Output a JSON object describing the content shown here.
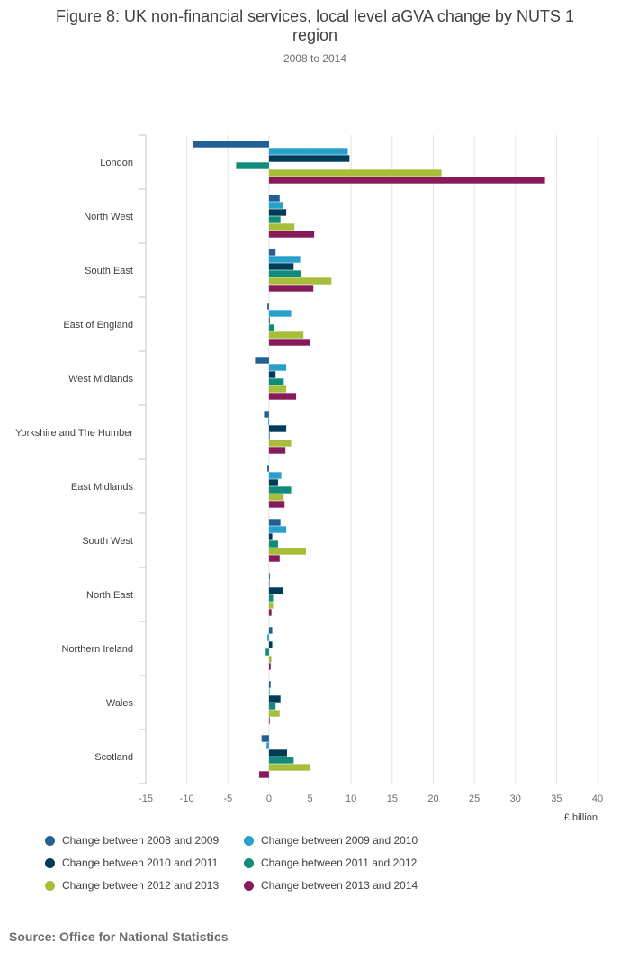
{
  "chart_data": {
    "type": "bar",
    "orientation": "horizontal",
    "title": "Figure 8: UK non-financial services, local level aGVA change by NUTS 1 region",
    "subtitle": "2008 to 2014",
    "xlabel": "£ billion",
    "xlim": [
      -15,
      40
    ],
    "xticks": [
      -15,
      -10,
      -5,
      0,
      5,
      10,
      15,
      20,
      25,
      30,
      35,
      40
    ],
    "grid": true,
    "legend_position": "bottom",
    "categories": [
      "London",
      "North West",
      "South East",
      "East of England",
      "West Midlands",
      "Yorkshire and The Humber",
      "East Midlands",
      "South West",
      "North East",
      "Northern Ireland",
      "Wales",
      "Scotland"
    ],
    "series": [
      {
        "name": "Change between 2008 and 2009",
        "color": "#206095",
        "values": [
          -9.2,
          1.3,
          0.8,
          -0.2,
          -1.7,
          -0.6,
          -0.2,
          1.4,
          0.1,
          0.4,
          0.2,
          -0.9
        ]
      },
      {
        "name": "Change between 2009 and 2010",
        "color": "#27a0cc",
        "values": [
          9.6,
          1.7,
          3.8,
          2.7,
          2.1,
          -0.1,
          1.5,
          2.1,
          0.0,
          -0.2,
          0.0,
          -0.3
        ]
      },
      {
        "name": "Change between 2010 and 2011",
        "color": "#003c57",
        "values": [
          9.8,
          2.1,
          3.0,
          0.0,
          0.8,
          2.1,
          1.1,
          0.4,
          1.7,
          0.4,
          1.4,
          2.2
        ]
      },
      {
        "name": "Change between 2011 and 2012",
        "color": "#118c7b",
        "values": [
          -4.0,
          1.4,
          3.9,
          0.6,
          1.8,
          0.0,
          2.7,
          1.1,
          0.5,
          -0.4,
          0.8,
          3.0
        ]
      },
      {
        "name": "Change between 2012 and 2013",
        "color": "#a8bd3a",
        "values": [
          21.0,
          3.1,
          7.6,
          4.2,
          2.1,
          2.7,
          1.8,
          4.5,
          0.5,
          0.3,
          1.3,
          5.0
        ]
      },
      {
        "name": "Change between 2013 and 2014",
        "color": "#871a5b",
        "values": [
          33.6,
          5.5,
          5.4,
          5.0,
          3.3,
          2.0,
          1.9,
          1.3,
          0.3,
          0.2,
          0.0,
          -1.2
        ]
      }
    ]
  },
  "source": "Source: Office for National Statistics"
}
